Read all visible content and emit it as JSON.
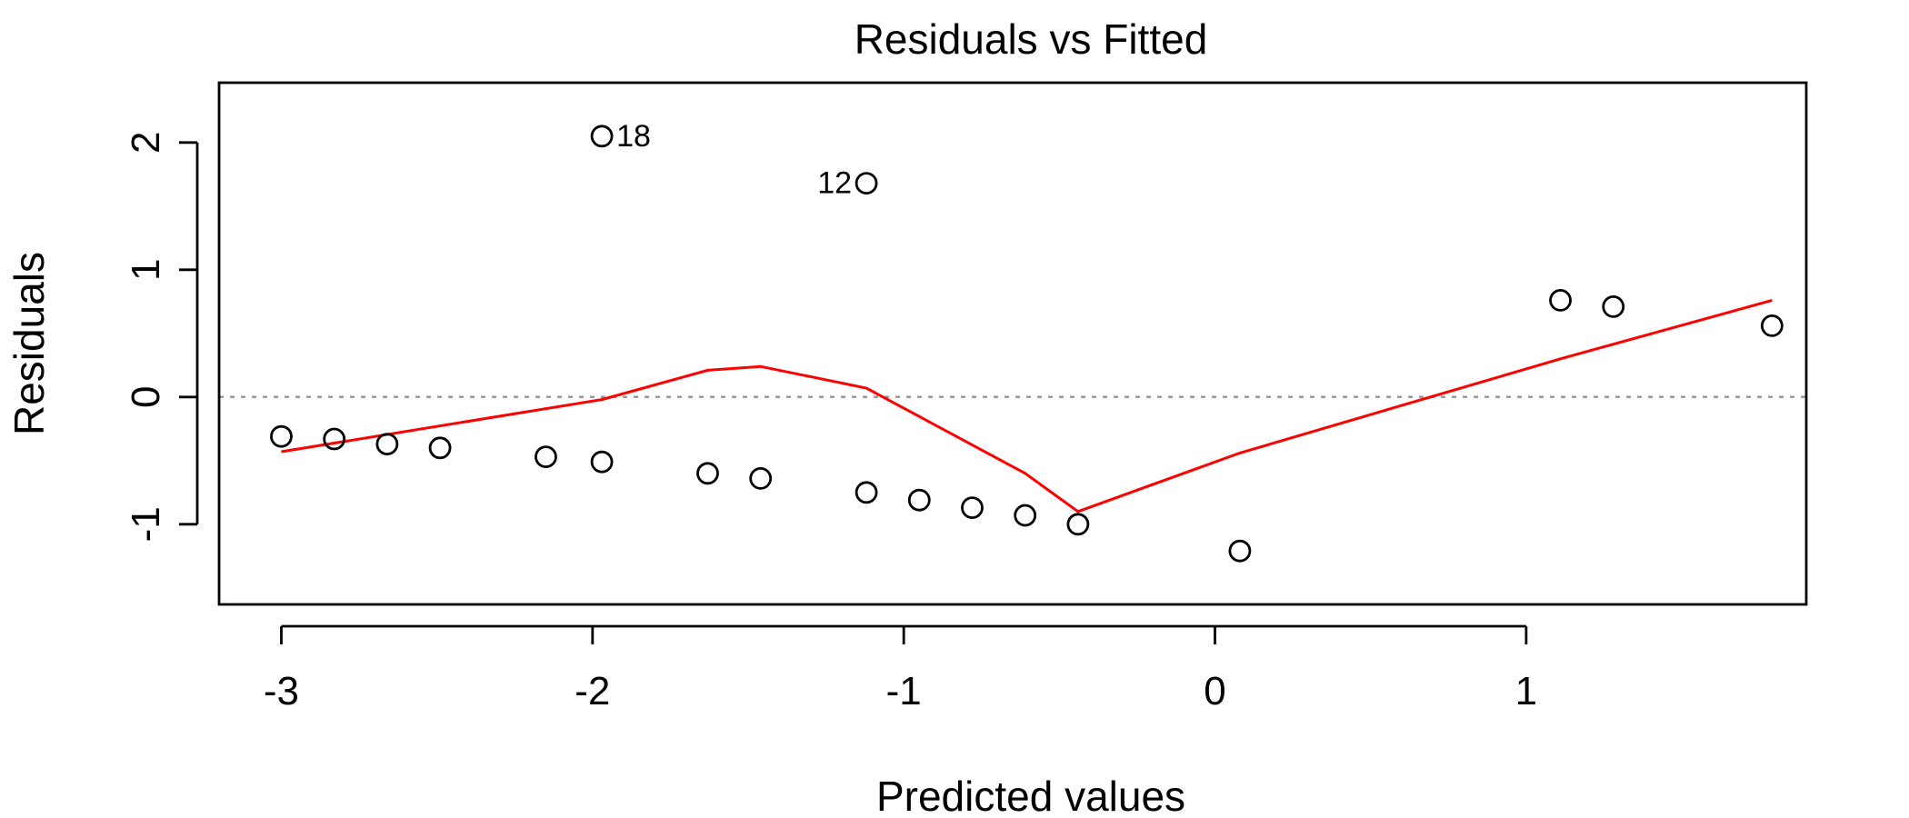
{
  "chart_data": {
    "type": "scatter",
    "title": "Residuals vs Fitted",
    "xlabel": "Predicted values",
    "ylabel": "Residuals",
    "xlim": [
      -3.2,
      1.9
    ],
    "ylim": [
      -1.63,
      2.47
    ],
    "xticks": [
      -3,
      -2,
      -1,
      0,
      1
    ],
    "yticks": [
      -1,
      0,
      1,
      2
    ],
    "xtick_labels": [
      "-3",
      "-2",
      "-1",
      "0",
      "1"
    ],
    "ytick_labels": [
      "-1",
      "0",
      "1",
      "2"
    ],
    "reference_line": {
      "y": 0,
      "style": "dotted",
      "color": "#999999"
    },
    "points": {
      "x": [
        -3.0,
        -2.83,
        -2.66,
        -2.49,
        -2.15,
        -1.97,
        -1.97,
        -1.63,
        -1.46,
        -1.12,
        -1.12,
        -0.95,
        -0.78,
        -0.61,
        -0.44,
        0.08,
        1.11,
        1.28,
        1.79
      ],
      "y": [
        -0.31,
        -0.33,
        -0.37,
        -0.4,
        -0.47,
        -0.51,
        2.05,
        -0.6,
        -0.64,
        -0.75,
        1.68,
        -0.81,
        -0.87,
        -0.93,
        -1.0,
        -1.21,
        0.76,
        0.71,
        0.56
      ]
    },
    "point_labels": [
      {
        "text": "18",
        "x": -1.97,
        "y": 2.05,
        "side": "right"
      },
      {
        "text": "12",
        "x": -1.12,
        "y": 1.68,
        "side": "left"
      }
    ],
    "smooth": {
      "name": "",
      "color": "#ff0000",
      "x": [
        -3.0,
        -1.97,
        -1.63,
        -1.46,
        -1.12,
        -0.61,
        -0.44,
        0.08,
        1.11,
        1.79
      ],
      "y": [
        -0.43,
        -0.02,
        0.21,
        0.24,
        0.07,
        -0.6,
        -0.9,
        -0.44,
        0.3,
        0.76
      ]
    },
    "grid": false,
    "legend": "none"
  }
}
